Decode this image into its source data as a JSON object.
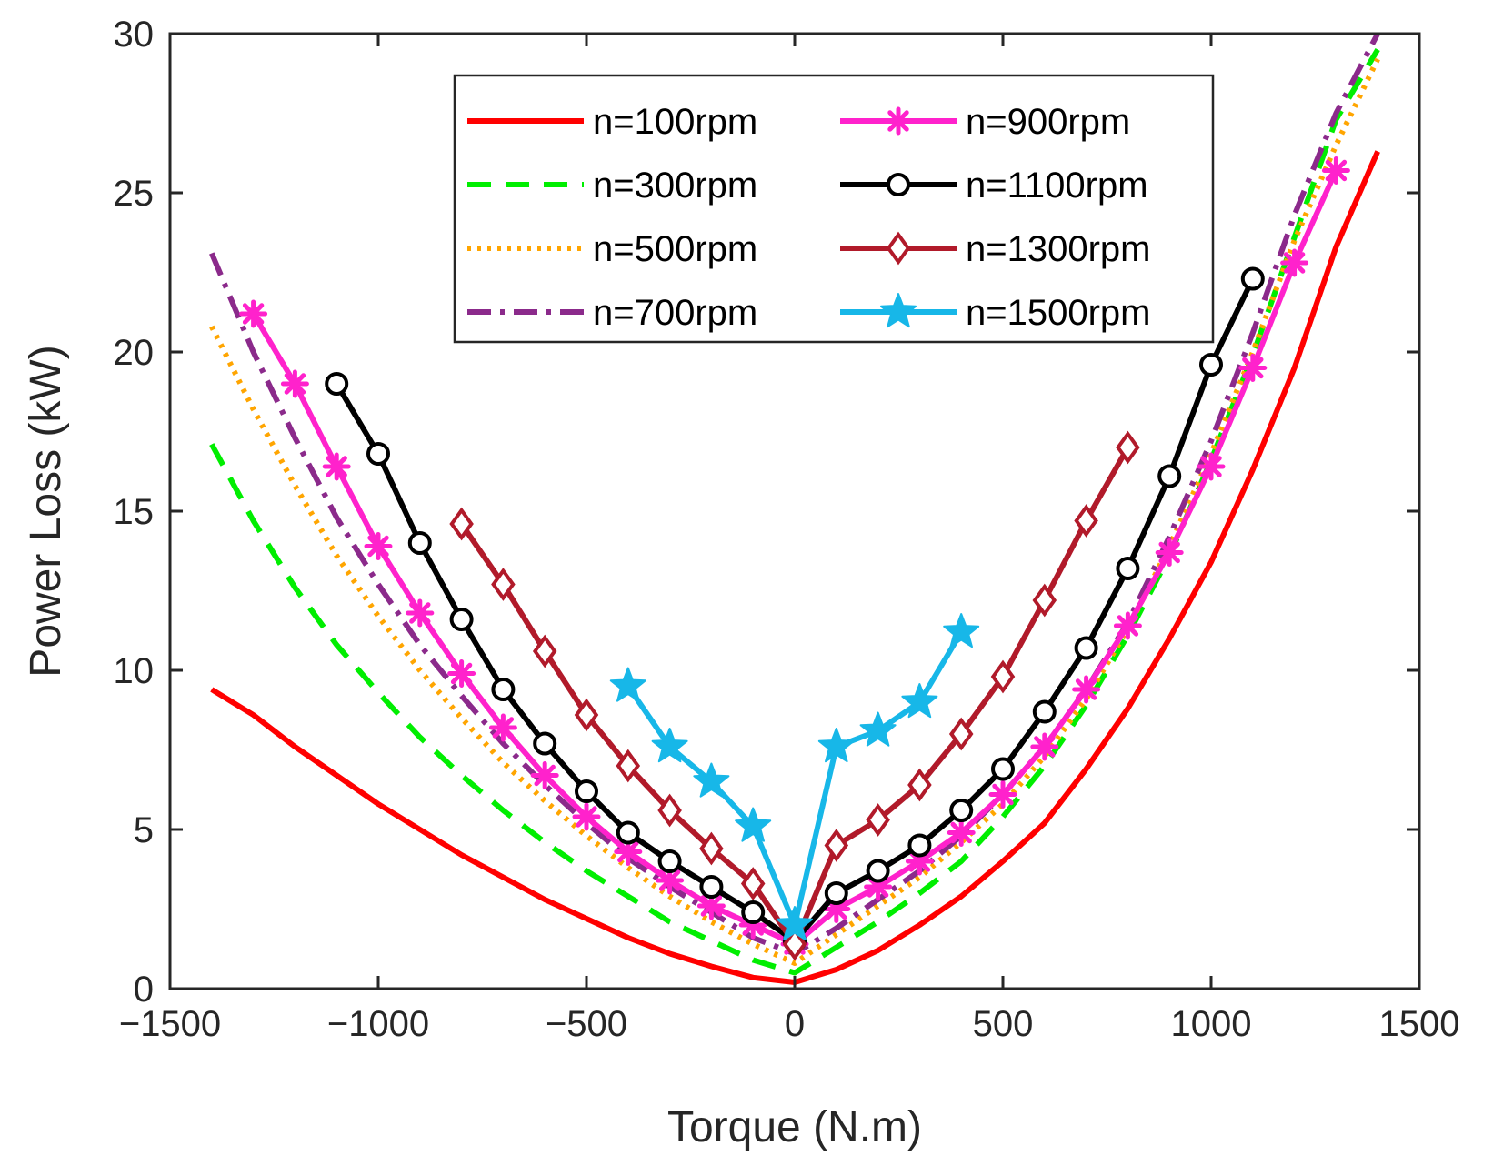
{
  "chart_data": {
    "type": "line",
    "title": "",
    "xlabel": "Torque (N.m)",
    "ylabel": "Power Loss (kW)",
    "xlim": [
      -1500,
      1500
    ],
    "ylim": [
      0,
      30
    ],
    "xticks": [
      -1500,
      -1000,
      -500,
      0,
      500,
      1000,
      1500
    ],
    "xtick_labels": [
      "−1500",
      "−1000",
      "−500",
      "0",
      "500",
      "1000",
      "1500"
    ],
    "yticks": [
      0,
      5,
      10,
      15,
      20,
      25,
      30
    ],
    "ytick_labels": [
      "0",
      "5",
      "10",
      "15",
      "20",
      "25",
      "30"
    ],
    "grid": false,
    "legend_position": "top-right",
    "series": [
      {
        "name": "n=100rpm",
        "color": "#ff0000",
        "dash": "solid",
        "marker": "none",
        "x": [
          -1400,
          -1300,
          -1200,
          -1100,
          -1000,
          -900,
          -800,
          -700,
          -600,
          -500,
          -400,
          -300,
          -200,
          -100,
          0,
          100,
          200,
          300,
          400,
          500,
          600,
          700,
          800,
          900,
          1000,
          1100,
          1200,
          1300,
          1400
        ],
        "y": [
          9.4,
          8.6,
          7.6,
          6.7,
          5.8,
          5.0,
          4.2,
          3.5,
          2.8,
          2.2,
          1.6,
          1.1,
          0.7,
          0.35,
          0.2,
          0.6,
          1.2,
          2.0,
          2.9,
          4.0,
          5.2,
          6.9,
          8.8,
          11.0,
          13.4,
          16.3,
          19.5,
          23.3,
          26.3
        ]
      },
      {
        "name": "n=300rpm",
        "color": "#00ee00",
        "dash": "dashed",
        "marker": "none",
        "x": [
          -1400,
          -1300,
          -1200,
          -1100,
          -1000,
          -900,
          -800,
          -700,
          -600,
          -500,
          -400,
          -300,
          -200,
          -100,
          0,
          100,
          200,
          300,
          400,
          500,
          600,
          700,
          800,
          900,
          1000,
          1100,
          1200,
          1300,
          1400
        ],
        "y": [
          17.1,
          14.7,
          12.6,
          10.8,
          9.3,
          7.9,
          6.7,
          5.6,
          4.6,
          3.7,
          2.9,
          2.1,
          1.5,
          0.9,
          0.5,
          1.3,
          2.1,
          3.0,
          4.0,
          5.4,
          7.0,
          8.9,
          11.1,
          13.6,
          16.6,
          19.9,
          23.6,
          27.3,
          29.5
        ]
      },
      {
        "name": "n=500rpm",
        "color": "#ffa500",
        "dash": "dotted",
        "marker": "none",
        "x": [
          -1400,
          -1300,
          -1200,
          -1100,
          -1000,
          -900,
          -800,
          -700,
          -600,
          -500,
          -400,
          -300,
          -200,
          -100,
          0,
          100,
          200,
          300,
          400,
          500,
          600,
          700,
          800,
          900,
          1000,
          1100,
          1200,
          1300,
          1400
        ],
        "y": [
          20.8,
          18.2,
          15.8,
          13.6,
          11.7,
          10.0,
          8.5,
          7.1,
          5.9,
          4.8,
          3.8,
          2.9,
          2.1,
          1.4,
          0.8,
          1.7,
          2.6,
          3.5,
          4.6,
          5.8,
          7.3,
          9.1,
          11.3,
          13.9,
          16.8,
          20.0,
          23.5,
          26.5,
          29.2
        ]
      },
      {
        "name": "n=700rpm",
        "color": "#8b2a8b",
        "dash": "dashdot",
        "marker": "none",
        "x": [
          -1400,
          -1300,
          -1200,
          -1100,
          -1000,
          -900,
          -800,
          -700,
          -600,
          -500,
          -400,
          -300,
          -200,
          -100,
          0,
          100,
          200,
          300,
          400,
          500,
          600,
          700,
          800,
          900,
          1000,
          1100,
          1200,
          1300,
          1400
        ],
        "y": [
          23.1,
          20.0,
          17.3,
          14.8,
          12.7,
          10.8,
          9.2,
          7.7,
          6.4,
          5.2,
          4.1,
          3.2,
          2.4,
          1.6,
          1.1,
          1.9,
          2.8,
          3.7,
          4.8,
          6.1,
          7.6,
          9.4,
          11.5,
          14.2,
          17.2,
          20.6,
          24.3,
          27.5,
          30.0
        ]
      },
      {
        "name": "n=900rpm",
        "color": "#ff22cc",
        "dash": "solid",
        "marker": "asterisk",
        "x": [
          -1300,
          -1200,
          -1100,
          -1000,
          -900,
          -800,
          -700,
          -600,
          -500,
          -400,
          -300,
          -200,
          -100,
          0,
          100,
          200,
          300,
          400,
          500,
          600,
          700,
          800,
          900,
          1000,
          1100,
          1200,
          1300
        ],
        "y": [
          21.2,
          19.0,
          16.4,
          13.9,
          11.8,
          9.9,
          8.2,
          6.7,
          5.4,
          4.3,
          3.4,
          2.6,
          2.0,
          1.4,
          2.5,
          3.2,
          4.0,
          4.9,
          6.1,
          7.6,
          9.4,
          11.4,
          13.7,
          16.4,
          19.5,
          22.8,
          25.7
        ]
      },
      {
        "name": "n=1100rpm",
        "color": "#000000",
        "dash": "solid",
        "marker": "circle",
        "x": [
          -1100,
          -1000,
          -900,
          -800,
          -700,
          -600,
          -500,
          -400,
          -300,
          -200,
          -100,
          0,
          100,
          200,
          300,
          400,
          500,
          600,
          700,
          800,
          900,
          1000,
          1100
        ],
        "y": [
          19.0,
          16.8,
          14.0,
          11.6,
          9.4,
          7.7,
          6.2,
          4.9,
          4.0,
          3.2,
          2.4,
          1.5,
          3.0,
          3.7,
          4.5,
          5.6,
          6.9,
          8.7,
          10.7,
          13.2,
          16.1,
          19.6,
          22.3
        ]
      },
      {
        "name": "n=1300rpm",
        "color": "#b11a2a",
        "dash": "solid",
        "marker": "diamond",
        "x": [
          -800,
          -700,
          -600,
          -500,
          -400,
          -300,
          -200,
          -100,
          0,
          100,
          200,
          300,
          400,
          500,
          600,
          700,
          800
        ],
        "y": [
          14.6,
          12.7,
          10.6,
          8.6,
          7.0,
          5.6,
          4.4,
          3.3,
          1.4,
          4.5,
          5.3,
          6.4,
          8.0,
          9.8,
          12.2,
          14.7,
          17.0
        ]
      },
      {
        "name": "n=1500rpm",
        "color": "#17b7e8",
        "dash": "solid",
        "marker": "star",
        "x": [
          -400,
          -300,
          -200,
          -100,
          0,
          100,
          200,
          300,
          400
        ],
        "y": [
          9.5,
          7.6,
          6.5,
          5.1,
          2.0,
          7.6,
          8.1,
          9.0,
          11.2
        ]
      }
    ]
  }
}
